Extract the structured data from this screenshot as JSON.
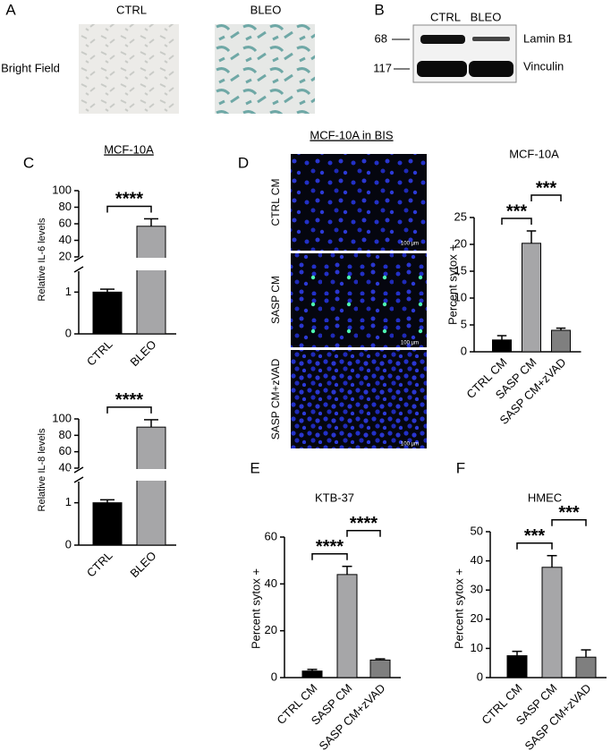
{
  "figure": {
    "panel_letters": [
      "A",
      "B",
      "C",
      "D",
      "E",
      "F"
    ],
    "bright_field": {
      "label": "Bright Field",
      "columns": [
        "CTRL",
        "BLEO"
      ]
    },
    "blot": {
      "columns": [
        "CTRL",
        "BLEO"
      ],
      "markers": [
        "68",
        "117"
      ],
      "proteins": [
        "Lamin B1",
        "Vinculin"
      ]
    },
    "imaging": {
      "title": "MCF-10A in BIS",
      "rows": [
        "CTRL CM",
        "SASP CM",
        "SASP CM+zVAD"
      ],
      "scale": "100 µm"
    }
  },
  "chart_data": [
    {
      "type": "bar",
      "title": "MCF-10A",
      "ylabel": "Relative IL-6 levels",
      "categories": [
        "CTRL",
        "BLEO"
      ],
      "values": [
        1.0,
        57
      ],
      "errors": [
        0.07,
        9
      ],
      "colors": [
        "#000000",
        "#a6a6a8"
      ],
      "segments": [
        {
          "ylim": [
            0,
            1.5
          ],
          "yticks": [
            0,
            1
          ]
        },
        {
          "ylim": [
            20,
            100
          ],
          "yticks": [
            20,
            40,
            60,
            80,
            100
          ]
        }
      ],
      "annotations": [
        {
          "label": "****",
          "between": [
            "CTRL",
            "BLEO"
          ]
        }
      ]
    },
    {
      "type": "bar",
      "ylabel": "Relative IL-8 levels",
      "categories": [
        "CTRL",
        "BLEO"
      ],
      "values": [
        1.0,
        90
      ],
      "errors": [
        0.07,
        9
      ],
      "colors": [
        "#000000",
        "#a6a6a8"
      ],
      "segments": [
        {
          "ylim": [
            0,
            1.5
          ],
          "yticks": [
            0,
            1
          ]
        },
        {
          "ylim": [
            40,
            100
          ],
          "yticks": [
            40,
            60,
            80,
            100
          ]
        }
      ],
      "annotations": [
        {
          "label": "****",
          "between": [
            "CTRL",
            "BLEO"
          ]
        }
      ]
    },
    {
      "type": "bar",
      "title": "MCF-10A",
      "ylabel": "Percent  sytox +",
      "categories": [
        "CTRL CM",
        "SASP CM",
        "SASP CM+zVAD"
      ],
      "values": [
        2.2,
        20.2,
        4.0
      ],
      "errors": [
        0.8,
        2.3,
        0.4
      ],
      "colors": [
        "#000000",
        "#a6a6a8",
        "#7f7f7f"
      ],
      "ylim": [
        0,
        25
      ],
      "yticks": [
        0,
        5,
        10,
        15,
        20,
        25
      ],
      "annotations": [
        {
          "label": "***",
          "between": [
            "CTRL CM",
            "SASP CM"
          ]
        },
        {
          "label": "***",
          "between": [
            "SASP CM",
            "SASP CM+zVAD"
          ]
        }
      ]
    },
    {
      "type": "bar",
      "title": "KTB-37",
      "ylabel": "Percent  sytox +",
      "categories": [
        "CTRL CM",
        "SASP CM",
        "SASP CM+zVAD"
      ],
      "values": [
        2.8,
        44,
        7.5
      ],
      "errors": [
        0.7,
        3.5,
        0.5
      ],
      "colors": [
        "#000000",
        "#a6a6a8",
        "#7f7f7f"
      ],
      "ylim": [
        0,
        60
      ],
      "yticks": [
        0,
        20,
        40,
        60
      ],
      "annotations": [
        {
          "label": "****",
          "between": [
            "CTRL CM",
            "SASP CM"
          ]
        },
        {
          "label": "****",
          "between": [
            "SASP CM",
            "SASP CM+zVAD"
          ]
        }
      ]
    },
    {
      "type": "bar",
      "title": "HMEC",
      "ylabel": "Percent  sytox +",
      "categories": [
        "CTRL CM",
        "SASP CM",
        "SASP CM+zVAD"
      ],
      "values": [
        7.5,
        37.8,
        7.0
      ],
      "errors": [
        1.5,
        4,
        2.5
      ],
      "colors": [
        "#000000",
        "#a6a6a8",
        "#7f7f7f"
      ],
      "ylim": [
        0,
        50
      ],
      "yticks": [
        0,
        10,
        20,
        30,
        40,
        50
      ],
      "annotations": [
        {
          "label": "***",
          "between": [
            "CTRL CM",
            "SASP CM"
          ]
        },
        {
          "label": "***",
          "between": [
            "SASP CM",
            "SASP CM+zVAD"
          ]
        }
      ]
    }
  ]
}
